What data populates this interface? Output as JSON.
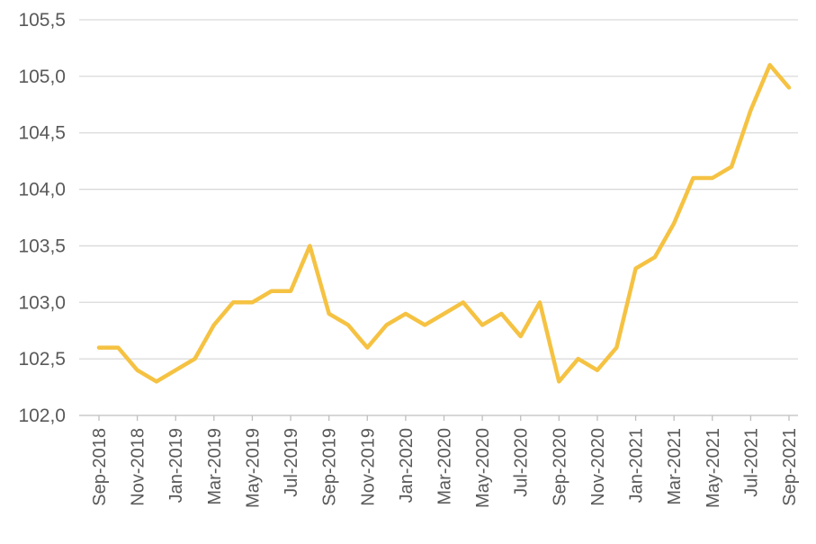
{
  "chart_data": {
    "type": "line",
    "title": "",
    "xlabel": "",
    "ylabel": "",
    "ylim": [
      102.0,
      105.5
    ],
    "y_ticks": [
      "102,0",
      "102,5",
      "103,0",
      "103,5",
      "104,0",
      "104,5",
      "105,0",
      "105,5"
    ],
    "grid": true,
    "legend": "none",
    "x": [
      "Sep-2018",
      "Oct-2018",
      "Nov-2018",
      "Dec-2018",
      "Jan-2019",
      "Feb-2019",
      "Mar-2019",
      "Apr-2019",
      "May-2019",
      "Jun-2019",
      "Jul-2019",
      "Aug-2019",
      "Sep-2019",
      "Oct-2019",
      "Nov-2019",
      "Dec-2019",
      "Jan-2020",
      "Feb-2020",
      "Mar-2020",
      "Apr-2020",
      "May-2020",
      "Jun-2020",
      "Jul-2020",
      "Aug-2020",
      "Sep-2020",
      "Oct-2020",
      "Nov-2020",
      "Dec-2020",
      "Jan-2021",
      "Feb-2021",
      "Mar-2021",
      "Apr-2021",
      "May-2021",
      "Jun-2021",
      "Jul-2021",
      "Aug-2021",
      "Sep-2021"
    ],
    "x_tick_labels": [
      "Sep-2018",
      "Nov-2018",
      "Jan-2019",
      "Mar-2019",
      "May-2019",
      "Jul-2019",
      "Sep-2019",
      "Nov-2019",
      "Jan-2020",
      "Mar-2020",
      "May-2020",
      "Jul-2020",
      "Sep-2020",
      "Nov-2020",
      "Jan-2021",
      "Mar-2021",
      "May-2021",
      "Jul-2021",
      "Sep-2021"
    ],
    "series": [
      {
        "values": [
          102.6,
          102.6,
          102.4,
          102.3,
          102.4,
          102.5,
          102.8,
          103.0,
          103.0,
          103.1,
          103.1,
          103.5,
          102.9,
          102.8,
          102.6,
          102.8,
          102.9,
          102.8,
          102.9,
          103.0,
          102.8,
          102.9,
          102.7,
          103.0,
          102.3,
          102.5,
          102.4,
          102.6,
          103.3,
          103.4,
          103.7,
          104.1,
          104.1,
          104.2,
          104.7,
          105.1,
          104.9
        ],
        "color": "#f5c242"
      }
    ]
  }
}
